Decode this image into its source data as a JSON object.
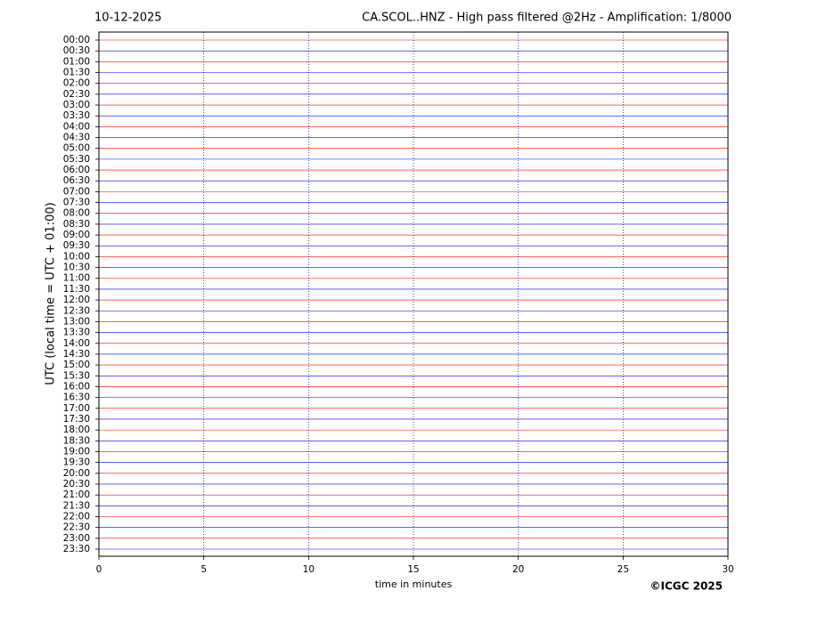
{
  "chart_data": {
    "type": "helicorder",
    "date": "10-12-2025",
    "title": "CA.SCOL..HNZ - High pass filtered @2Hz - Amplification: 1/8000",
    "y_label": "UTC (local time = UTC + 01:00)",
    "x_label": "time in minutes",
    "credit": "©ICGC 2025",
    "categories": [
      "00:00",
      "00:30",
      "01:00",
      "01:30",
      "02:00",
      "02:30",
      "03:00",
      "03:30",
      "04:00",
      "04:30",
      "05:00",
      "05:30",
      "06:00",
      "06:30",
      "07:00",
      "07:30",
      "08:00",
      "08:30",
      "09:00",
      "09:30",
      "10:00",
      "10:30",
      "11:00",
      "11:30",
      "12:00",
      "12:30",
      "13:00",
      "13:30",
      "14:00",
      "14:30",
      "15:00",
      "15:30",
      "16:00",
      "16:30",
      "17:00",
      "17:30",
      "18:00",
      "18:30",
      "19:00",
      "19:30",
      "20:00",
      "20:30",
      "21:00",
      "21:30",
      "22:00",
      "22:30",
      "23:00",
      "23:30"
    ],
    "trace_colors": [
      "#ff0000",
      "#0000ff"
    ],
    "xlim": [
      0,
      30
    ],
    "xticks": [
      0,
      5,
      10,
      15,
      20,
      25,
      30
    ],
    "grid": true
  }
}
